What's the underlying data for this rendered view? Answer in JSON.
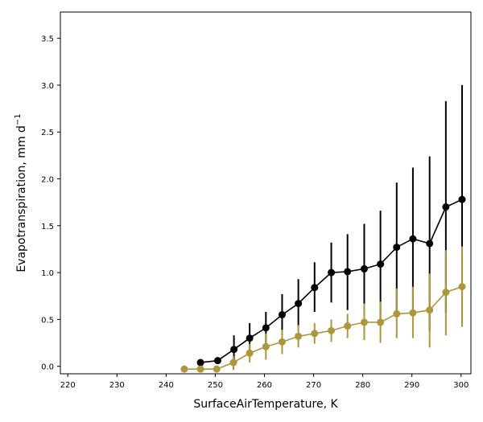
{
  "chart_data": {
    "type": "scatter",
    "xlabel": "SurfaceAirTemperature,  K",
    "ylabel_main": "Evapotranspiration,  mm d",
    "ylabel_sup": "−1",
    "xlim": [
      218.5,
      302
    ],
    "ylim": [
      -0.08,
      3.78
    ],
    "xticks": [
      220,
      230,
      240,
      250,
      260,
      270,
      280,
      290,
      300
    ],
    "yticks": [
      0.0,
      0.5,
      1.0,
      1.5,
      2.0,
      2.5,
      3.0,
      3.5
    ],
    "xtick_labels": [
      "220",
      "230",
      "240",
      "250",
      "260",
      "270",
      "280",
      "290",
      "300"
    ],
    "ytick_labels": [
      "0.0",
      "0.5",
      "1.0",
      "1.5",
      "2.0",
      "2.5",
      "3.0",
      "3.5"
    ],
    "grid": false,
    "series": [
      {
        "color": "#000000",
        "points": [
          {
            "x": 247.0,
            "y": 0.04,
            "lo": 0.04,
            "hi": 0.04
          },
          {
            "x": 250.5,
            "y": 0.06,
            "lo": 0.06,
            "hi": 0.06
          },
          {
            "x": 253.8,
            "y": 0.18,
            "lo": 0.03,
            "hi": 0.33
          },
          {
            "x": 257.0,
            "y": 0.3,
            "lo": 0.14,
            "hi": 0.46
          },
          {
            "x": 260.3,
            "y": 0.41,
            "lo": 0.24,
            "hi": 0.58
          },
          {
            "x": 263.6,
            "y": 0.55,
            "lo": 0.33,
            "hi": 0.77
          },
          {
            "x": 266.9,
            "y": 0.67,
            "lo": 0.42,
            "hi": 0.93
          },
          {
            "x": 270.2,
            "y": 0.84,
            "lo": 0.58,
            "hi": 1.11
          },
          {
            "x": 273.6,
            "y": 1.0,
            "lo": 0.68,
            "hi": 1.32
          },
          {
            "x": 276.9,
            "y": 1.01,
            "lo": 0.6,
            "hi": 1.41
          },
          {
            "x": 280.3,
            "y": 1.04,
            "lo": 0.56,
            "hi": 1.52
          },
          {
            "x": 283.6,
            "y": 1.09,
            "lo": 0.51,
            "hi": 1.66
          },
          {
            "x": 286.9,
            "y": 1.27,
            "lo": 0.58,
            "hi": 1.96
          },
          {
            "x": 290.2,
            "y": 1.36,
            "lo": 0.6,
            "hi": 2.12
          },
          {
            "x": 293.6,
            "y": 1.31,
            "lo": 0.37,
            "hi": 2.24
          },
          {
            "x": 296.9,
            "y": 1.7,
            "lo": 0.57,
            "hi": 2.83
          },
          {
            "x": 300.2,
            "y": 1.78,
            "lo": 0.55,
            "hi": 3.0
          }
        ]
      },
      {
        "color": "#ad963c",
        "points": [
          {
            "x": 243.7,
            "y": -0.03,
            "lo": -0.03,
            "hi": -0.03
          },
          {
            "x": 247.0,
            "y": -0.03,
            "lo": -0.03,
            "hi": -0.03
          },
          {
            "x": 250.3,
            "y": -0.03,
            "lo": -0.03,
            "hi": -0.03
          },
          {
            "x": 253.7,
            "y": 0.04,
            "lo": -0.04,
            "hi": 0.11
          },
          {
            "x": 257.0,
            "y": 0.14,
            "lo": 0.04,
            "hi": 0.24
          },
          {
            "x": 260.3,
            "y": 0.21,
            "lo": 0.07,
            "hi": 0.35
          },
          {
            "x": 263.6,
            "y": 0.26,
            "lo": 0.13,
            "hi": 0.39
          },
          {
            "x": 266.9,
            "y": 0.32,
            "lo": 0.2,
            "hi": 0.44
          },
          {
            "x": 270.2,
            "y": 0.35,
            "lo": 0.24,
            "hi": 0.46
          },
          {
            "x": 273.6,
            "y": 0.38,
            "lo": 0.26,
            "hi": 0.5
          },
          {
            "x": 276.9,
            "y": 0.43,
            "lo": 0.3,
            "hi": 0.56
          },
          {
            "x": 280.3,
            "y": 0.47,
            "lo": 0.28,
            "hi": 0.67
          },
          {
            "x": 283.6,
            "y": 0.47,
            "lo": 0.25,
            "hi": 0.69
          },
          {
            "x": 286.9,
            "y": 0.56,
            "lo": 0.3,
            "hi": 0.83
          },
          {
            "x": 290.2,
            "y": 0.57,
            "lo": 0.3,
            "hi": 0.85
          },
          {
            "x": 293.6,
            "y": 0.6,
            "lo": 0.2,
            "hi": 0.99
          },
          {
            "x": 296.9,
            "y": 0.79,
            "lo": 0.33,
            "hi": 1.24
          },
          {
            "x": 300.2,
            "y": 0.85,
            "lo": 0.42,
            "hi": 1.28
          }
        ]
      }
    ]
  }
}
